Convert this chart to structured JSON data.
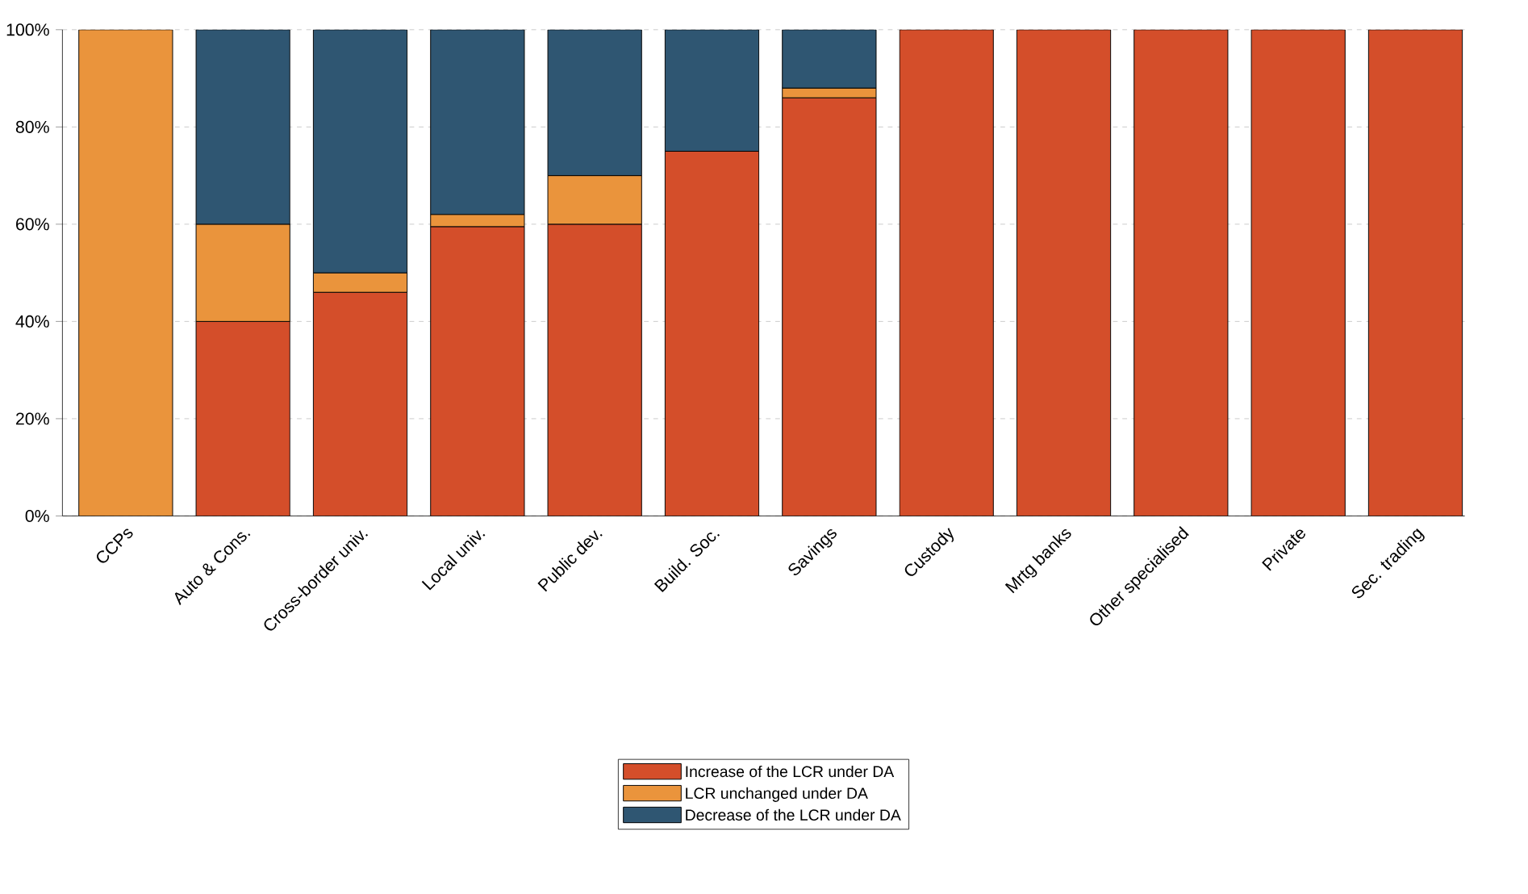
{
  "chart_data": {
    "type": "bar",
    "stacked": true,
    "categories": [
      "CCPs",
      "Auto & Cons.",
      "Cross-border univ.",
      "Local univ.",
      "Public dev.",
      "Build. Soc.",
      "Savings",
      "Custody",
      "Mrtg banks",
      "Other specialised",
      "Private",
      "Sec. trading"
    ],
    "series": [
      {
        "name": "Increase of the LCR under DA",
        "color": "#d44e2a",
        "values": [
          0,
          40,
          46,
          59.5,
          60,
          75,
          86,
          100,
          100,
          100,
          100,
          100
        ]
      },
      {
        "name": "LCR unchanged under DA",
        "color": "#ea943c",
        "values": [
          100,
          20,
          4,
          2.5,
          10,
          0,
          2,
          0,
          0,
          0,
          0,
          0
        ]
      },
      {
        "name": "Decrease of the LCR under DA",
        "color": "#2f5672",
        "values": [
          0,
          40,
          50,
          38,
          30,
          25,
          12,
          0,
          0,
          0,
          0,
          0
        ]
      }
    ],
    "ylim": [
      0,
      100
    ],
    "yticks": [
      {
        "value": 0,
        "label": "0%"
      },
      {
        "value": 20,
        "label": "20%"
      },
      {
        "value": 40,
        "label": "40%"
      },
      {
        "value": 60,
        "label": "60%"
      },
      {
        "value": 80,
        "label": "80%"
      },
      {
        "value": 100,
        "label": "100%"
      }
    ],
    "grid": "y",
    "legend": "bottom"
  }
}
